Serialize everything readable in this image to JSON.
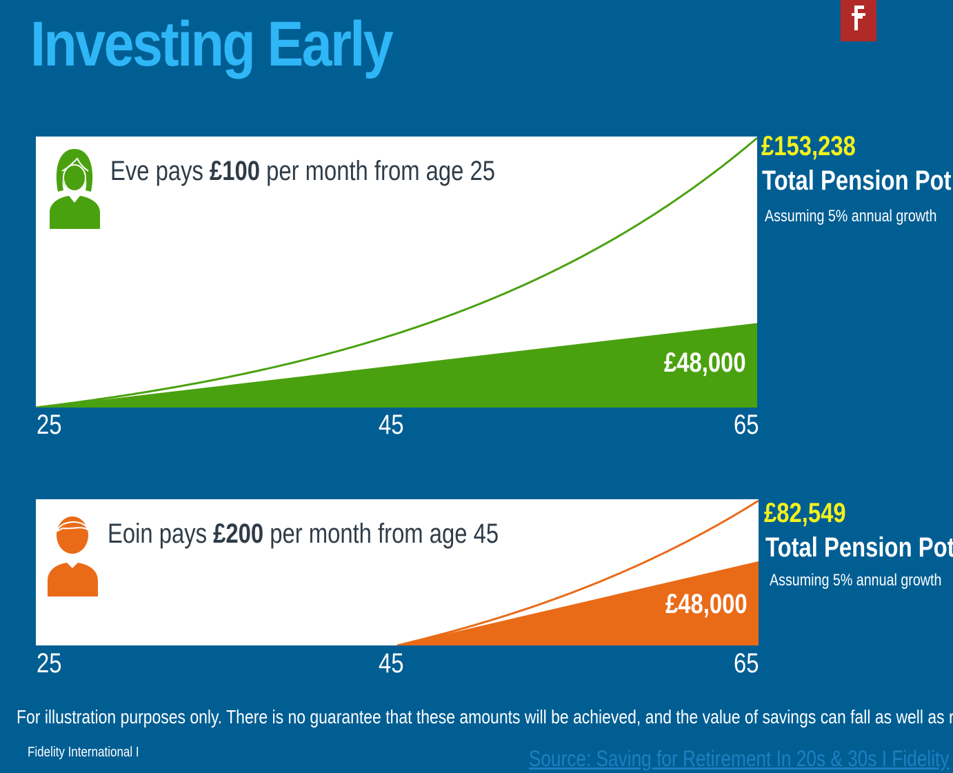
{
  "slide": {
    "title": "Investing Early",
    "logo_letter": "F",
    "disclaimer": "For illustration purposes only. There is no guarantee that these amounts will be achieved, and the value of savings can fall as well as rise",
    "brand": "Fidelity International  I",
    "source_link": "Source: Saving for Retirement In 20s & 30s I Fidelity"
  },
  "panels": [
    {
      "person": {
        "pre": "Eve pays ",
        "amount": "£100",
        "post": " per month from age 25"
      },
      "contributed_label": "£48,000",
      "total_value": "£153,238",
      "total_label": "Total Pension Pot",
      "growth_note": "Assuming 5% annual growth",
      "ticks": [
        "25",
        "45",
        "65"
      ],
      "color": "#4aa10f",
      "icon": "woman-icon"
    },
    {
      "person": {
        "pre": "Eoin pays ",
        "amount": "£200",
        "post": " per month from age 45"
      },
      "contributed_label": "£48,000",
      "total_value": "£82,549",
      "total_label": "Total Pension Pot",
      "growth_note": "Assuming 5% annual growth",
      "ticks": [
        "25",
        "45",
        "65"
      ],
      "color": "#e96b18",
      "icon": "man-icon"
    }
  ],
  "chart_data": [
    {
      "type": "area",
      "title": "Eve pays £100 per month from age 25",
      "x_range": [
        25,
        65
      ],
      "xticks": [
        25,
        45,
        65
      ],
      "monthly_contribution": 100,
      "start_age": 25,
      "annual_growth": 0.05,
      "series": [
        {
          "name": "",
          "kind": "area",
          "x": [
            25,
            65
          ],
          "values": [
            0,
            48000
          ]
        },
        {
          "name": "",
          "kind": "line",
          "x": [
            25,
            35,
            45,
            55,
            65
          ],
          "values": [
            0,
            15528,
            41103,
            83212,
            153238
          ]
        }
      ],
      "end_labels": {
        "contributed": "£48,000",
        "total": "£153,238"
      }
    },
    {
      "type": "area",
      "title": "Eoin pays £200 per month from age 45",
      "x_range": [
        25,
        65
      ],
      "xticks": [
        25,
        45,
        65
      ],
      "monthly_contribution": 200,
      "start_age": 45,
      "annual_growth": 0.05,
      "series": [
        {
          "name": "",
          "kind": "area",
          "x": [
            45,
            65
          ],
          "values": [
            0,
            48000
          ]
        },
        {
          "name": "",
          "kind": "line",
          "x": [
            45,
            50,
            55,
            60,
            65
          ],
          "values": [
            0,
            13601,
            31056,
            53458,
            82549
          ]
        }
      ],
      "end_labels": {
        "contributed": "£48,000",
        "total": "£82,549"
      }
    }
  ]
}
